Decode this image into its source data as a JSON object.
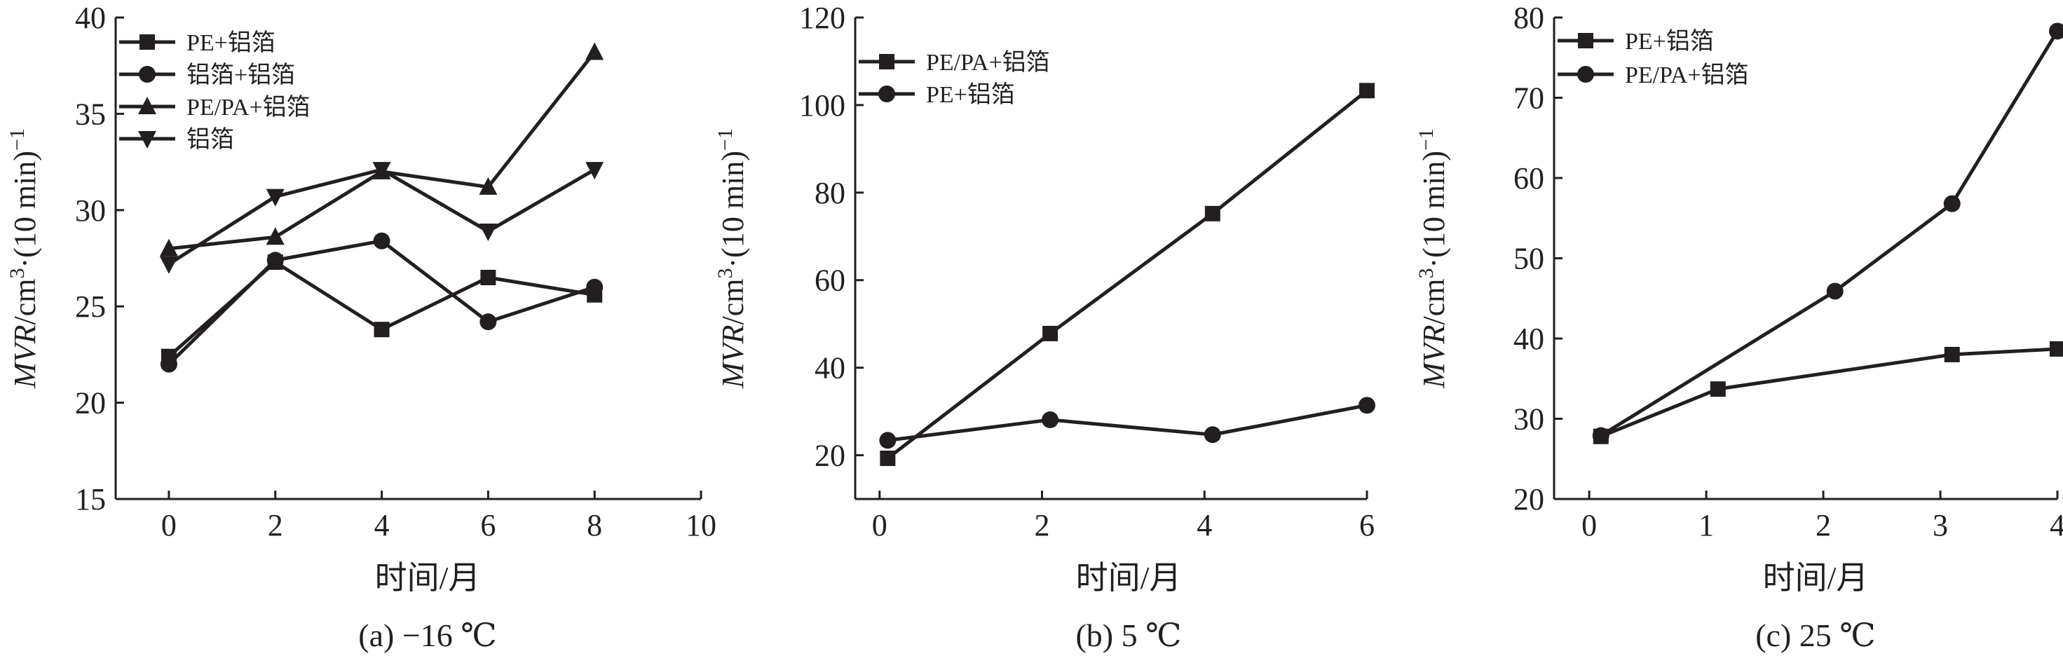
{
  "chart_data": [
    {
      "type": "line",
      "caption": "(a) −16 ℃",
      "xlabel": "时间/月",
      "ylabel_var": "MVR",
      "ylabel_unit": "/cm",
      "ylabel_sup": "3",
      "ylabel_tail": "·(10 min)",
      "ylabel_sup2": "−1",
      "xlim": [
        -1,
        10
      ],
      "ylim": [
        15,
        40
      ],
      "xticks": [
        0,
        2,
        4,
        6,
        8,
        10
      ],
      "yticks": [
        15,
        20,
        25,
        30,
        35,
        40
      ],
      "x": [
        0,
        2,
        4,
        6,
        8
      ],
      "series": [
        {
          "name": "PE+铝箔",
          "marker": "square",
          "values": [
            22.4,
            27.3,
            23.8,
            26.5,
            25.6
          ]
        },
        {
          "name": "铝箔+铝箔",
          "marker": "circle",
          "values": [
            22.0,
            27.4,
            28.4,
            24.2,
            26.0
          ]
        },
        {
          "name": "PE/PA+铝箔",
          "marker": "triangle-up",
          "values": [
            28.0,
            28.6,
            32.0,
            31.2,
            38.2
          ]
        },
        {
          "name": "铝箔",
          "marker": "triangle-down",
          "values": [
            27.2,
            30.7,
            32.1,
            28.9,
            32.1
          ]
        }
      ]
    },
    {
      "type": "line",
      "caption": "(b) 5 ℃",
      "xlabel": "时间/月",
      "ylabel_var": "MVR",
      "ylabel_unit": "/cm",
      "ylabel_sup": "3",
      "ylabel_tail": "·(10 min)",
      "ylabel_sup2": "−1",
      "xlim": [
        -0.3,
        6
      ],
      "ylim": [
        10,
        120
      ],
      "xticks": [
        0,
        2,
        4,
        6
      ],
      "yticks": [
        20,
        40,
        60,
        80,
        100,
        120
      ],
      "series": [
        {
          "name": "PE/PA+铝箔",
          "marker": "square",
          "x": [
            0.1,
            2.1,
            4.1,
            6.0
          ],
          "values": [
            19.3,
            47.8,
            75.2,
            103.3
          ]
        },
        {
          "name": "PE+铝箔",
          "marker": "circle",
          "x": [
            0.1,
            2.1,
            4.1,
            6.0
          ],
          "values": [
            23.4,
            28.1,
            24.7,
            31.4
          ]
        }
      ]
    },
    {
      "type": "line",
      "caption": "(c) 25 ℃",
      "xlabel": "时间/月",
      "ylabel_var": "MVR",
      "ylabel_unit": "/cm",
      "ylabel_sup": "3",
      "ylabel_tail": "·(10 min)",
      "ylabel_sup2": "−1",
      "xlim": [
        -0.3,
        4
      ],
      "ylim": [
        20,
        80
      ],
      "xticks": [
        0,
        1,
        2,
        3,
        4
      ],
      "yticks": [
        20,
        30,
        40,
        50,
        60,
        70,
        80
      ],
      "series": [
        {
          "name": "PE+铝箔",
          "marker": "square",
          "x": [
            0.1,
            1.1,
            3.1,
            4.0
          ],
          "values": [
            27.8,
            33.7,
            38.0,
            38.7
          ]
        },
        {
          "name": "PE/PA+铝箔",
          "marker": "circle",
          "x": [
            0.1,
            2.1,
            3.1,
            4.0
          ],
          "values": [
            27.9,
            45.9,
            56.8,
            78.3
          ]
        }
      ]
    }
  ]
}
